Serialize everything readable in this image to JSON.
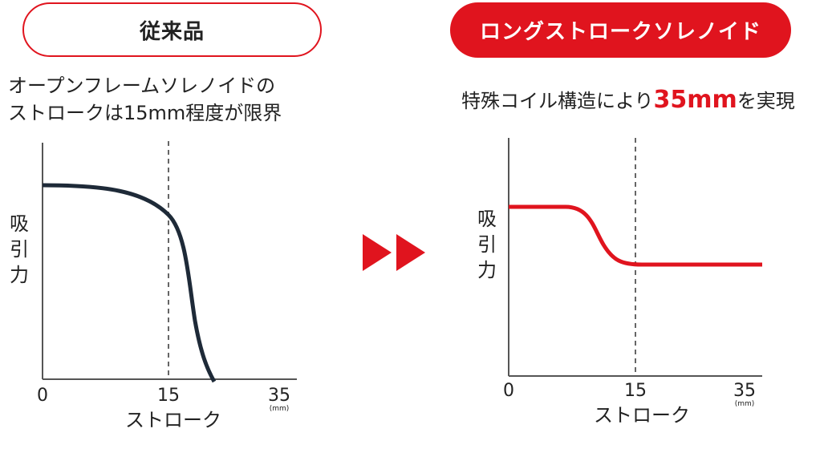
{
  "left_panel": {
    "badge": "従来品",
    "caption_line1": "オープンフレームソレノイドの",
    "caption_line2": "ストロークは15mm程度が限界",
    "chart": {
      "ylabel": [
        "吸",
        "引",
        "力"
      ],
      "xlabel": "ストローク",
      "ticks": [
        "0",
        "15",
        "35"
      ],
      "unit": "(mm)"
    }
  },
  "right_panel": {
    "badge": "ロングストロークソレノイド",
    "caption_pre": "特殊コイル構造により",
    "caption_highlight": "35mm",
    "caption_post": "を実現",
    "chart": {
      "ylabel": [
        "吸",
        "引",
        "力"
      ],
      "xlabel": "ストローク",
      "ticks": [
        "0",
        "15",
        "35"
      ],
      "unit": "(mm)"
    }
  },
  "colors": {
    "accent": "#e0141e",
    "conventional_curve": "#1e2a38",
    "text": "#222222"
  },
  "arrow_icon": "double-right-arrow"
}
